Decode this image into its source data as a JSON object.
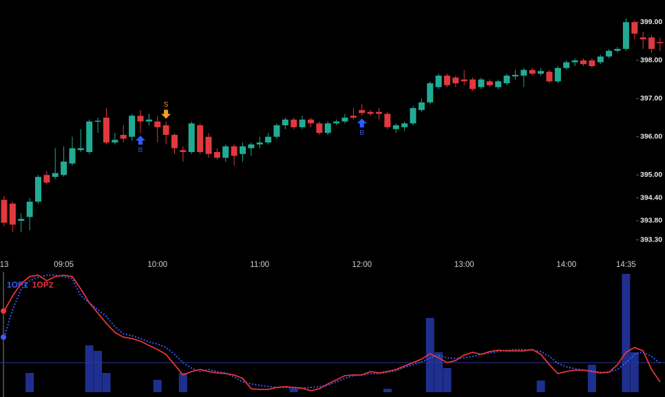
{
  "chart_data": [
    {
      "type": "candlestick",
      "categories": [
        "13",
        null,
        null,
        null,
        null,
        null,
        null,
        "09:05",
        null,
        null,
        null,
        null,
        null,
        null,
        null,
        null,
        null,
        null,
        "10:00",
        null,
        null,
        null,
        null,
        null,
        null,
        null,
        null,
        null,
        null,
        null,
        "11:00",
        null,
        null,
        null,
        null,
        null,
        null,
        null,
        null,
        null,
        null,
        null,
        "12:00",
        null,
        null,
        null,
        null,
        null,
        null,
        null,
        null,
        null,
        null,
        null,
        "13:00",
        null,
        null,
        null,
        null,
        null,
        null,
        null,
        null,
        null,
        null,
        null,
        "14:00",
        null,
        null,
        null,
        null,
        null,
        null,
        "14:35",
        null,
        null,
        null,
        null
      ],
      "open": [
        394.35,
        394.25,
        393.8,
        393.9,
        394.3,
        395.0,
        394.95,
        395.0,
        395.3,
        395.65,
        395.6,
        396.4,
        396.5,
        395.85,
        396.05,
        396.0,
        396.55,
        396.4,
        396.4,
        396.3,
        396.05,
        395.65,
        395.6,
        396.3,
        396.0,
        395.6,
        395.45,
        395.75,
        395.55,
        395.7,
        395.8,
        395.85,
        396.0,
        396.3,
        396.45,
        396.25,
        396.45,
        396.35,
        396.1,
        396.35,
        396.4,
        396.55,
        396.7,
        396.65,
        396.65,
        396.6,
        396.2,
        396.25,
        396.35,
        396.7,
        396.9,
        397.3,
        397.6,
        397.55,
        397.5,
        397.5,
        397.3,
        397.45,
        397.3,
        397.4,
        397.58,
        397.6,
        397.75,
        397.65,
        397.7,
        397.45,
        397.8,
        397.95,
        398.0,
        398.0,
        397.95,
        398.1,
        398.25,
        398.3,
        399.0,
        398.6,
        398.6,
        398.48
      ],
      "high": [
        394.45,
        394.3,
        394.0,
        394.4,
        395.0,
        395.1,
        395.7,
        395.75,
        396.0,
        396.2,
        396.45,
        396.5,
        396.75,
        396.1,
        396.3,
        396.6,
        396.7,
        396.6,
        396.55,
        396.4,
        396.1,
        395.75,
        396.4,
        396.35,
        396.1,
        395.7,
        395.8,
        395.8,
        395.85,
        395.85,
        396.0,
        396.1,
        396.35,
        396.5,
        396.5,
        396.55,
        396.5,
        396.4,
        396.4,
        396.45,
        396.6,
        396.75,
        396.85,
        396.7,
        396.75,
        396.65,
        396.35,
        396.4,
        396.8,
        397.0,
        397.45,
        397.65,
        397.65,
        397.6,
        397.75,
        397.55,
        397.55,
        397.5,
        397.5,
        397.65,
        397.75,
        397.8,
        397.8,
        397.8,
        397.75,
        397.85,
        398.0,
        398.05,
        398.05,
        398.05,
        398.15,
        398.3,
        398.35,
        399.1,
        399.05,
        398.75,
        398.65,
        398.6
      ],
      "low": [
        393.65,
        393.5,
        393.5,
        393.55,
        394.25,
        394.75,
        394.9,
        394.95,
        395.25,
        395.6,
        395.55,
        396.1,
        395.8,
        395.8,
        395.85,
        395.9,
        396.1,
        396.3,
        395.85,
        395.8,
        395.55,
        395.35,
        395.55,
        395.55,
        395.45,
        395.4,
        395.35,
        395.25,
        395.35,
        395.5,
        395.7,
        395.8,
        395.95,
        396.2,
        396.2,
        396.2,
        396.25,
        396.05,
        396.05,
        396.3,
        396.35,
        396.45,
        396.55,
        396.55,
        396.45,
        396.2,
        396.1,
        396.15,
        396.3,
        396.65,
        396.85,
        397.25,
        397.3,
        397.3,
        397.35,
        397.2,
        397.25,
        397.3,
        397.25,
        397.35,
        397.5,
        397.3,
        397.6,
        397.6,
        397.4,
        397.4,
        397.75,
        397.85,
        397.85,
        397.8,
        397.9,
        398.05,
        398.2,
        398.25,
        398.55,
        398.3,
        398.2,
        398.25
      ],
      "close": [
        393.75,
        393.7,
        393.85,
        394.3,
        394.95,
        394.8,
        395.05,
        395.35,
        395.7,
        395.7,
        396.4,
        396.42,
        395.85,
        395.92,
        395.95,
        396.55,
        396.4,
        396.45,
        396.25,
        396.05,
        395.7,
        395.6,
        396.35,
        395.6,
        395.55,
        395.45,
        395.75,
        395.5,
        395.75,
        395.8,
        395.85,
        396.0,
        396.3,
        396.45,
        396.25,
        396.45,
        396.35,
        396.1,
        396.35,
        396.4,
        396.5,
        396.5,
        396.62,
        396.6,
        396.6,
        396.25,
        396.3,
        396.35,
        396.75,
        396.9,
        397.4,
        397.6,
        397.35,
        397.4,
        397.45,
        397.25,
        397.5,
        397.35,
        397.45,
        397.6,
        397.62,
        397.75,
        397.65,
        397.72,
        397.45,
        397.8,
        397.95,
        398.0,
        397.9,
        397.85,
        398.1,
        398.25,
        398.3,
        399.0,
        398.7,
        398.55,
        398.3,
        398.45
      ],
      "up_color": "#22ab94",
      "down_color": "#e0393e",
      "ylim": [
        392.88,
        399.58
      ],
      "yticks": [
        {
          "value": 399,
          "label": "399.00"
        },
        {
          "value": 398,
          "label": "398.00"
        },
        {
          "value": 397,
          "label": "397.00"
        },
        {
          "value": 396,
          "label": "396.00"
        },
        {
          "value": 395,
          "label": "395.00"
        },
        {
          "value": 394.4,
          "label": "394.40"
        },
        {
          "value": 393.8,
          "label": "393.80"
        },
        {
          "value": 393.3,
          "label": "393.30"
        }
      ],
      "signals": [
        {
          "index": 16,
          "label": "B",
          "color": "#2f5bff"
        },
        {
          "index": 19,
          "label": "S",
          "color": "#f0a020"
        },
        {
          "index": 42,
          "label": "B",
          "color": "#2f5bff"
        }
      ]
    },
    {
      "type": "line",
      "series": [
        {
          "name": "1OP1",
          "color": "#3a5cff",
          "dotted": true,
          "values": [
            80,
            120,
            150,
            162,
            167,
            170,
            170,
            168,
            165,
            140,
            130,
            120,
            110,
            95,
            85,
            82,
            78,
            73,
            70,
            65,
            55,
            43,
            35,
            30,
            33,
            30,
            28,
            22,
            15,
            12,
            10,
            8,
            7,
            7,
            5,
            6,
            7,
            8,
            10,
            15,
            20,
            24,
            25,
            27,
            27,
            29,
            31,
            36,
            40,
            44,
            50,
            53,
            50,
            49,
            50,
            52,
            55,
            57,
            59,
            61,
            62,
            62,
            61,
            59,
            52,
            42,
            37,
            34,
            32,
            31,
            29,
            29,
            33,
            43,
            55,
            58,
            52,
            42
          ]
        },
        {
          "name": "1OP2",
          "color": "#e8353a",
          "dotted": false,
          "values": [
            118,
            140,
            158,
            168,
            170,
            162,
            168,
            170,
            168,
            150,
            130,
            115,
            100,
            87,
            80,
            78,
            74,
            68,
            62,
            55,
            40,
            25,
            30,
            33,
            30,
            28,
            27,
            25,
            20,
            5,
            4,
            4,
            7,
            8,
            7,
            6,
            2,
            5,
            12,
            18,
            24,
            25,
            25,
            30,
            28,
            30,
            33,
            38,
            43,
            48,
            56,
            50,
            43,
            46,
            54,
            58,
            55,
            59,
            61,
            60,
            60,
            60,
            62,
            55,
            40,
            27,
            30,
            32,
            32,
            30,
            28,
            29,
            40,
            58,
            65,
            60,
            33,
            15
          ]
        }
      ],
      "bars": {
        "color": "#1f2f8f",
        "values": [
          null,
          null,
          null,
          28,
          null,
          null,
          null,
          null,
          null,
          null,
          68,
          60,
          28,
          null,
          null,
          null,
          null,
          null,
          18,
          null,
          null,
          28,
          null,
          null,
          null,
          null,
          null,
          null,
          null,
          null,
          null,
          null,
          null,
          null,
          5,
          null,
          null,
          null,
          null,
          null,
          null,
          null,
          null,
          null,
          null,
          5,
          null,
          null,
          null,
          null,
          108,
          58,
          35,
          null,
          null,
          null,
          null,
          null,
          null,
          null,
          null,
          null,
          null,
          17,
          null,
          null,
          null,
          null,
          null,
          40,
          null,
          null,
          null,
          172,
          58,
          null,
          null,
          null
        ]
      },
      "reference_line": 43,
      "ylim": [
        0,
        175
      ]
    }
  ]
}
